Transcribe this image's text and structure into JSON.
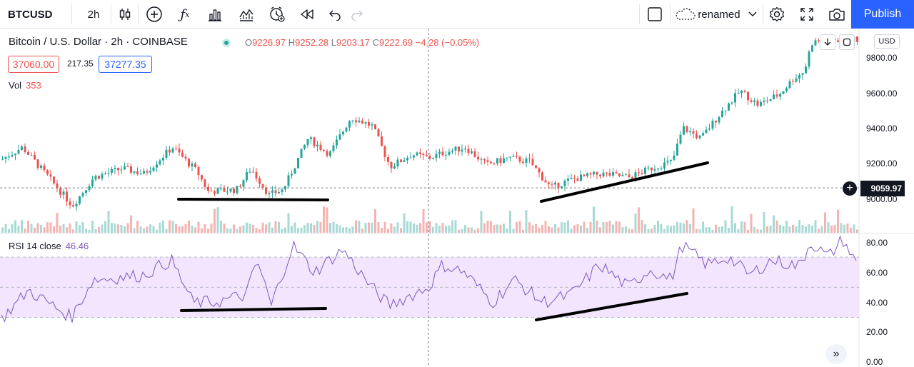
{
  "toolbar": {
    "symbol": "BTCUSD",
    "interval": "2h",
    "layout_name": "renamed",
    "publish_label": "Publish",
    "icons": [
      "candles-icon",
      "add-indicator-icon",
      "fx-icon",
      "bar-chart-icon",
      "compare-icon",
      "alert-icon",
      "replay-icon",
      "undo-icon",
      "redo-icon",
      "layout-square-icon",
      "cloud-icon",
      "chevron-down-icon",
      "settings-icon",
      "fullscreen-icon",
      "camera-icon"
    ]
  },
  "legend": {
    "title": "Bitcoin / U.S. Dollar · 2h · COINBASE",
    "open_key": "O",
    "open": "9226.97",
    "high_key": "H",
    "high": "9252.28",
    "low_key": "L",
    "low": "9203.17",
    "close_key": "C",
    "close": "9222.69",
    "change": "−4.28 (−0.05%)",
    "bid": "37060.00",
    "spread": "217.35",
    "ask": "37277.35",
    "vol_label": "Vol",
    "vol_value": "353",
    "rsi_label": "RSI 14 close",
    "rsi_value": "46.46"
  },
  "price_axis": {
    "currency": "USD",
    "labels": [
      "9800.00",
      "9600.00",
      "9400.00",
      "9200.00",
      "9000.00"
    ],
    "current_price": "9059.97"
  },
  "rsi_axis": {
    "labels": [
      "80.00",
      "60.00",
      "40.00",
      "20.00",
      "0.00"
    ]
  },
  "colors": {
    "up": "#26a69a",
    "down": "#ef5350",
    "rsi_line": "#7e57c2",
    "rsi_band": "#f3e5fd",
    "accent": "#2962ff",
    "trendline": "#000000"
  },
  "chart_data": [
    {
      "type": "candlestick",
      "title": "Bitcoin / U.S. Dollar · 2h · COINBASE",
      "ylim": [
        8900,
        9900
      ],
      "y_ticks": [
        9000,
        9200,
        9400,
        9600,
        9800
      ],
      "crosshair_price": 9059.97,
      "trendlines": [
        {
          "label": "",
          "from": [
            0.195,
            9000
          ],
          "to": [
            0.36,
            8995
          ]
        },
        {
          "label": "",
          "from": [
            0.59,
            8990
          ],
          "to": [
            0.775,
            9200
          ]
        }
      ]
    },
    {
      "type": "line",
      "title": "RSI 14 close",
      "ylim": [
        0,
        85
      ],
      "y_ticks": [
        0,
        20,
        40,
        60,
        80
      ],
      "band": [
        30,
        70
      ],
      "last_value": 46.46
    }
  ]
}
